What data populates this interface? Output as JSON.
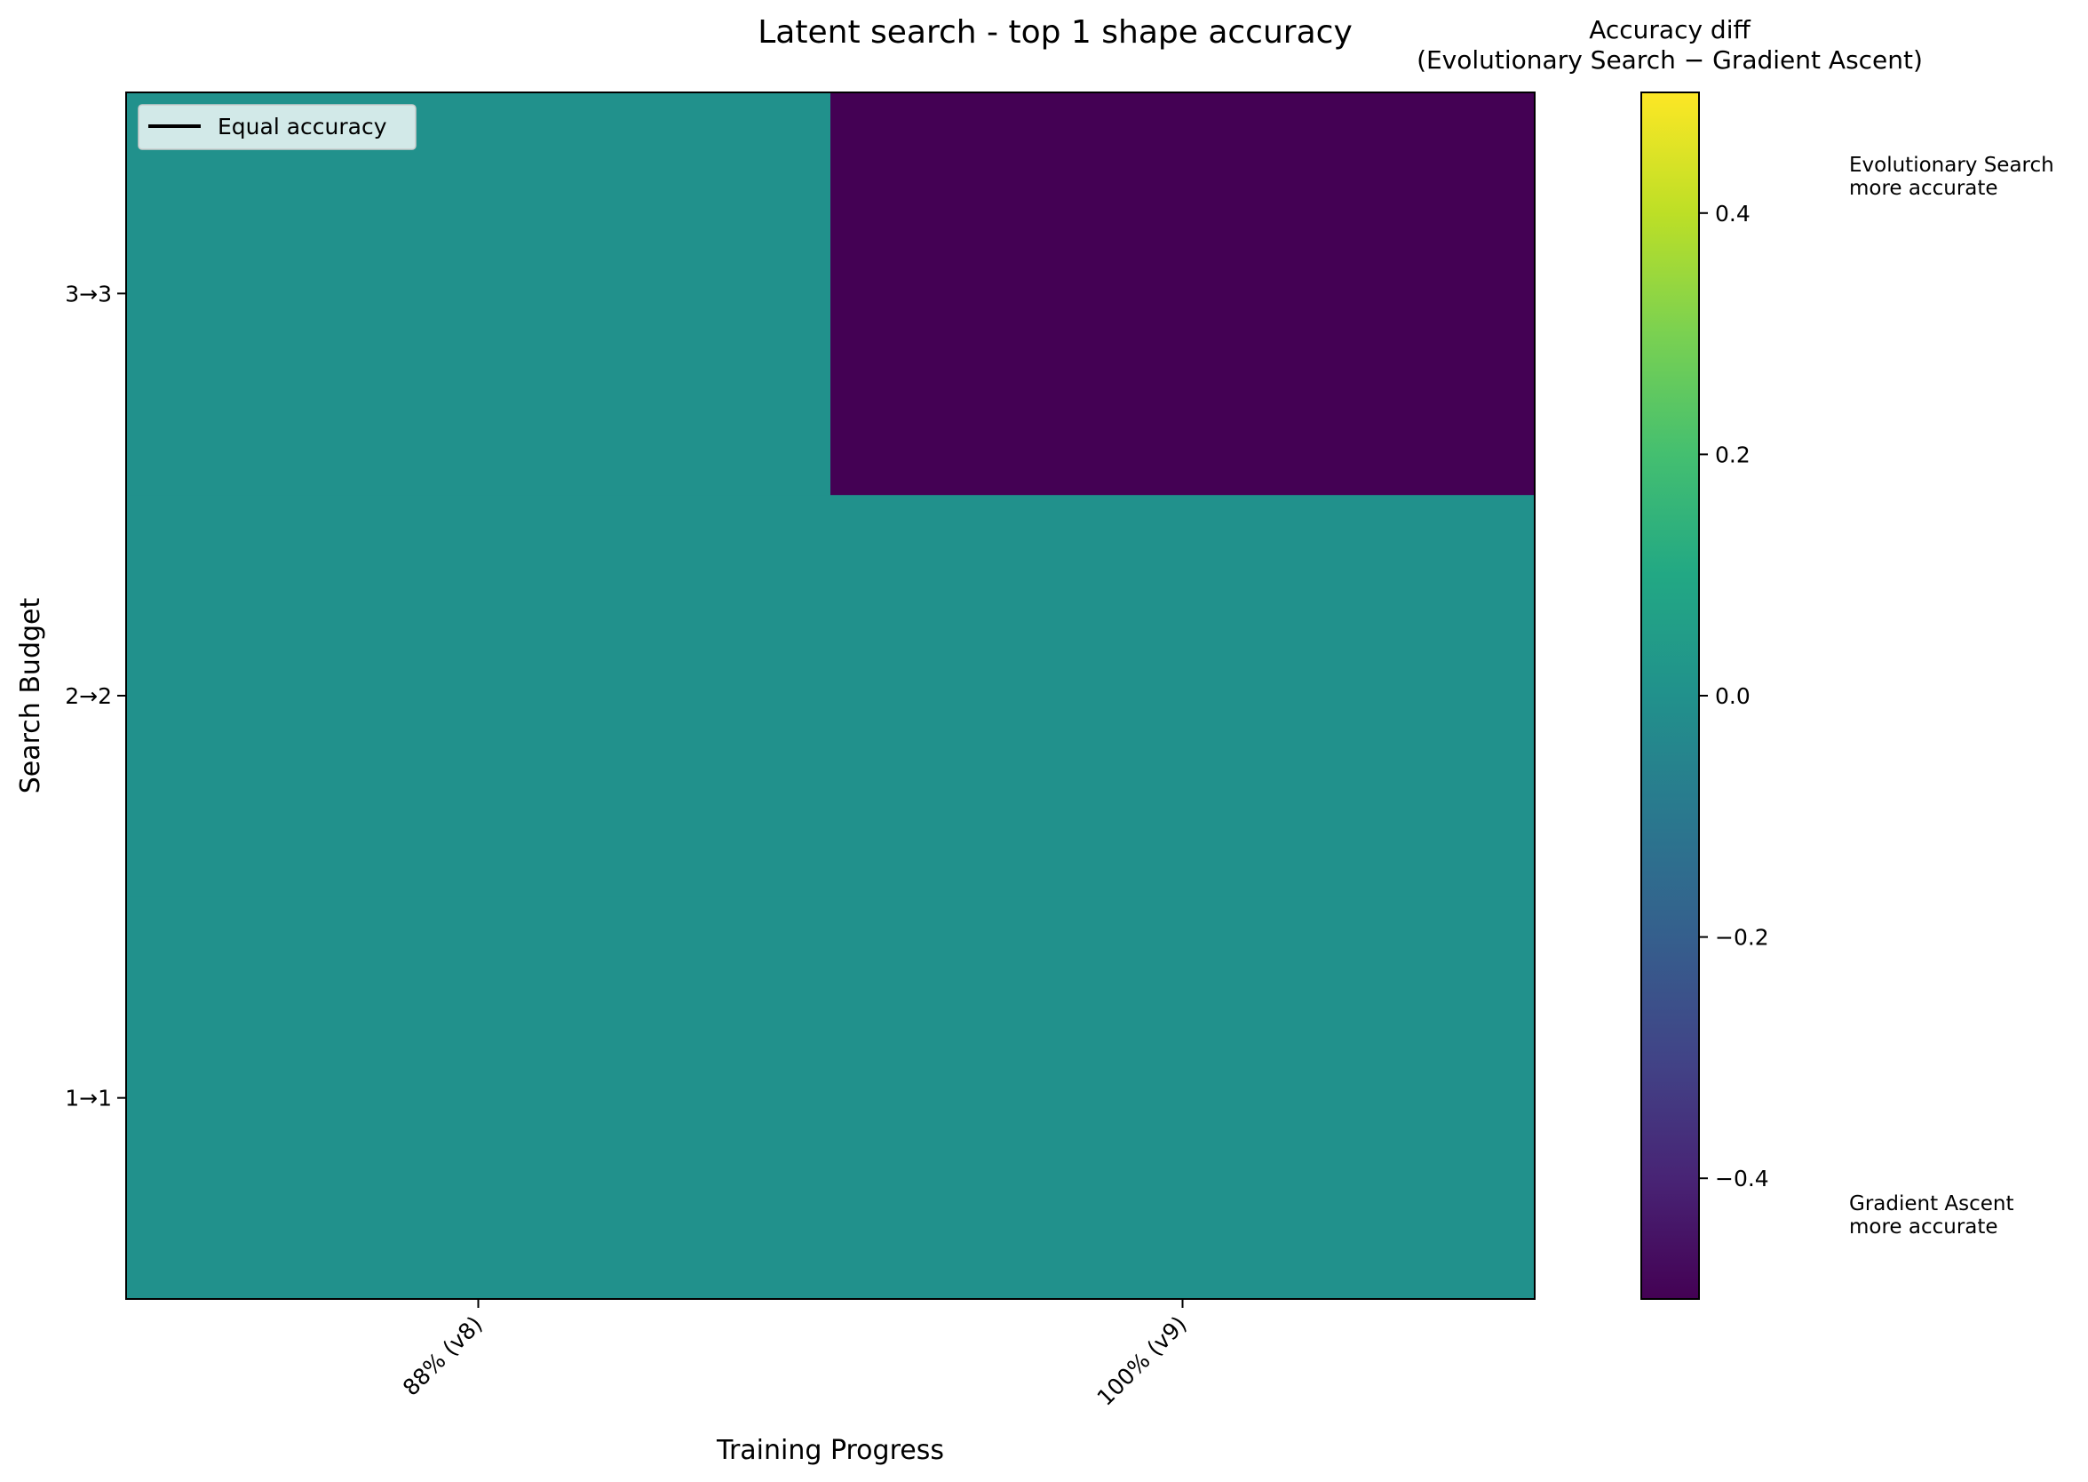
{
  "chart_data": {
    "type": "heatmap",
    "title": "Latent search - top 1 shape accuracy",
    "xlabel": "Training Progress",
    "ylabel": "Search Budget",
    "x_categories": [
      "88% (v8)",
      "100% (v9)"
    ],
    "y_categories": [
      "1→1",
      "2→2",
      "3→3"
    ],
    "values": [
      [
        0.0,
        0.0
      ],
      [
        0.0,
        0.0
      ],
      [
        0.0,
        -0.5
      ]
    ],
    "value_layout": "rows follow y_categories, columns follow x_categories",
    "colormap": "viridis",
    "vmin": -0.5,
    "vmax": 0.5,
    "grid": false,
    "colorbar": {
      "title_line1": "Accuracy diff",
      "title_line2": "(Evolutionary Search − Gradient Ascent)",
      "ticks": [
        -0.4,
        -0.2,
        0.0,
        0.2,
        0.4
      ],
      "tick_labels": [
        "−0.4",
        "−0.2",
        "0.0",
        "0.2",
        "0.4"
      ],
      "top_annotation_line1": "Evolutionary Search",
      "top_annotation_line2": "more accurate",
      "bottom_annotation_line1": "Gradient Ascent",
      "bottom_annotation_line2": "more accurate"
    },
    "legend": {
      "placement": "top-left",
      "label": "Equal accuracy",
      "line_color": "#000000"
    }
  }
}
